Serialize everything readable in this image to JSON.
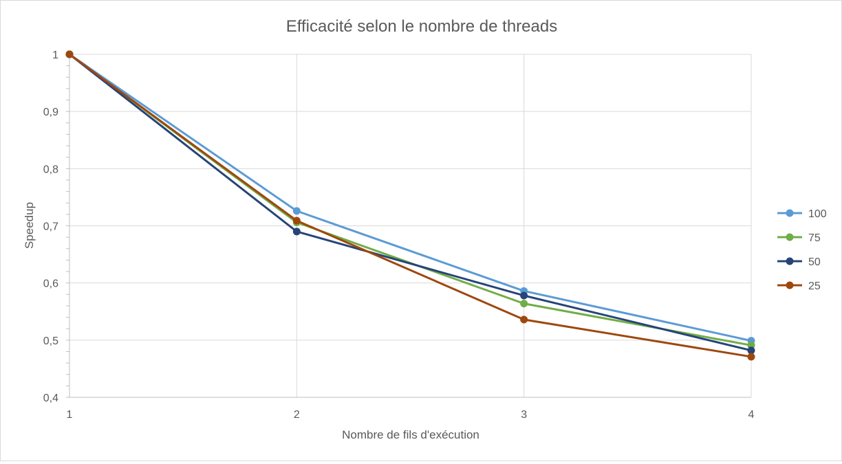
{
  "chart_data": {
    "type": "line",
    "title": "Efficacité selon le nombre de threads",
    "xlabel": "Nombre de fils d'exécution",
    "ylabel": "Speedup",
    "x": [
      1,
      2,
      3,
      4
    ],
    "x_tick_labels": [
      "1",
      "2",
      "3",
      "4"
    ],
    "ylim": [
      0.4,
      1.0
    ],
    "y_ticks": [
      0.4,
      0.5,
      0.6,
      0.7,
      0.8,
      0.9,
      1.0
    ],
    "y_tick_labels": [
      "0,4",
      "0,5",
      "0,6",
      "0,7",
      "0,8",
      "0,9",
      "1"
    ],
    "grid": true,
    "legend_position": "right",
    "series": [
      {
        "name": "100",
        "color": "#5b9bd5",
        "values": [
          1.0,
          0.726,
          0.586,
          0.499
        ]
      },
      {
        "name": "75",
        "color": "#70ad47",
        "values": [
          1.0,
          0.706,
          0.564,
          0.491
        ]
      },
      {
        "name": "50",
        "color": "#264478",
        "values": [
          1.0,
          0.69,
          0.578,
          0.482
        ]
      },
      {
        "name": "25",
        "color": "#9e480e",
        "values": [
          1.0,
          0.709,
          0.536,
          0.471
        ]
      }
    ]
  }
}
